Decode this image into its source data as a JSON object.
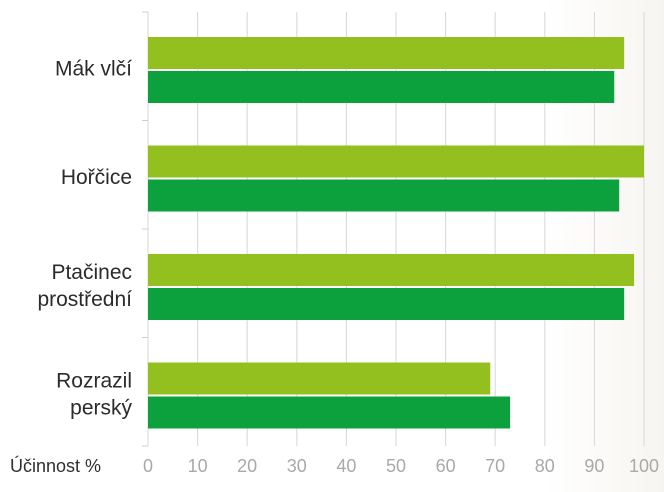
{
  "chart_data": {
    "type": "bar",
    "orientation": "horizontal",
    "categories": [
      [
        "Mák vlčí"
      ],
      [
        "Hořčice"
      ],
      [
        "Ptačinec",
        "prostřední"
      ],
      [
        "Rozrazil",
        "perský"
      ]
    ],
    "series": [
      {
        "values": [
          96,
          100,
          98,
          69
        ]
      },
      {
        "values": [
          94,
          95,
          96,
          73
        ]
      }
    ],
    "colors": [
      "#93c01f",
      "#0ca13d"
    ],
    "xlabel": "Účinnost %",
    "ylabel": "",
    "xlim": [
      0,
      100
    ],
    "xticks": [
      "0",
      "10",
      "20",
      "30",
      "40",
      "50",
      "60",
      "70",
      "80",
      "90",
      "100"
    ],
    "grid": true,
    "legend": "none"
  }
}
